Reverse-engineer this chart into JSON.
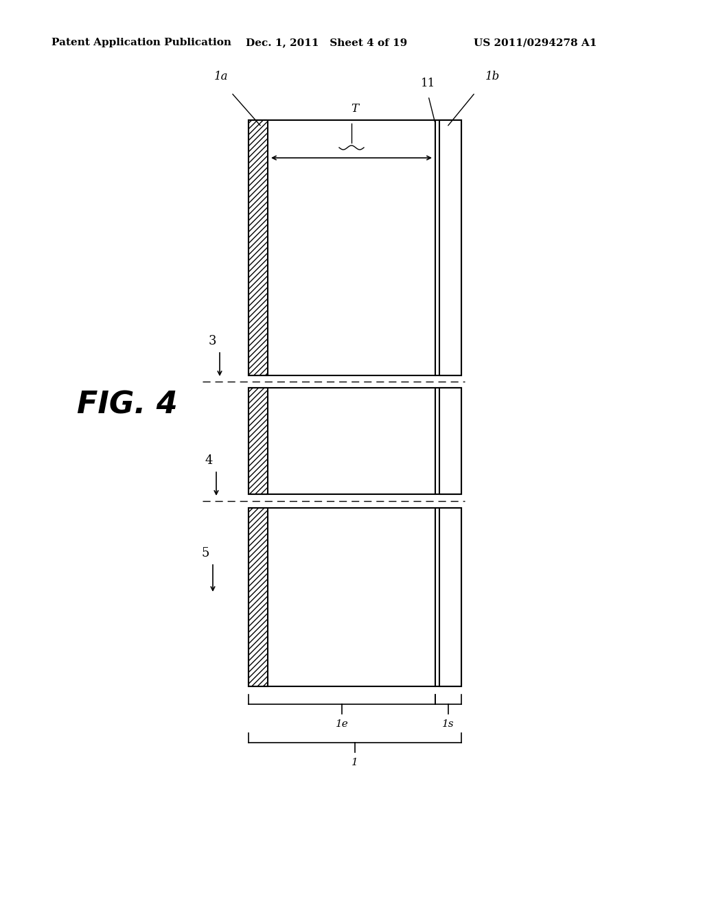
{
  "title_left": "Patent Application Publication",
  "title_center": "Dec. 1, 2011   Sheet 4 of 19",
  "title_right": "US 2011/0294278 A1",
  "fig_label": "FIG. 4",
  "background_color": "#ffffff",
  "line_color": "#000000",
  "page_width": 10.24,
  "page_height": 13.2,
  "label_3": "3",
  "label_4": "4",
  "label_5": "5",
  "label_11": "11",
  "label_1a": "1a",
  "label_1b": "1b",
  "label_T": "T",
  "label_1e": "1e",
  "label_1s": "1s",
  "label_1": "1"
}
